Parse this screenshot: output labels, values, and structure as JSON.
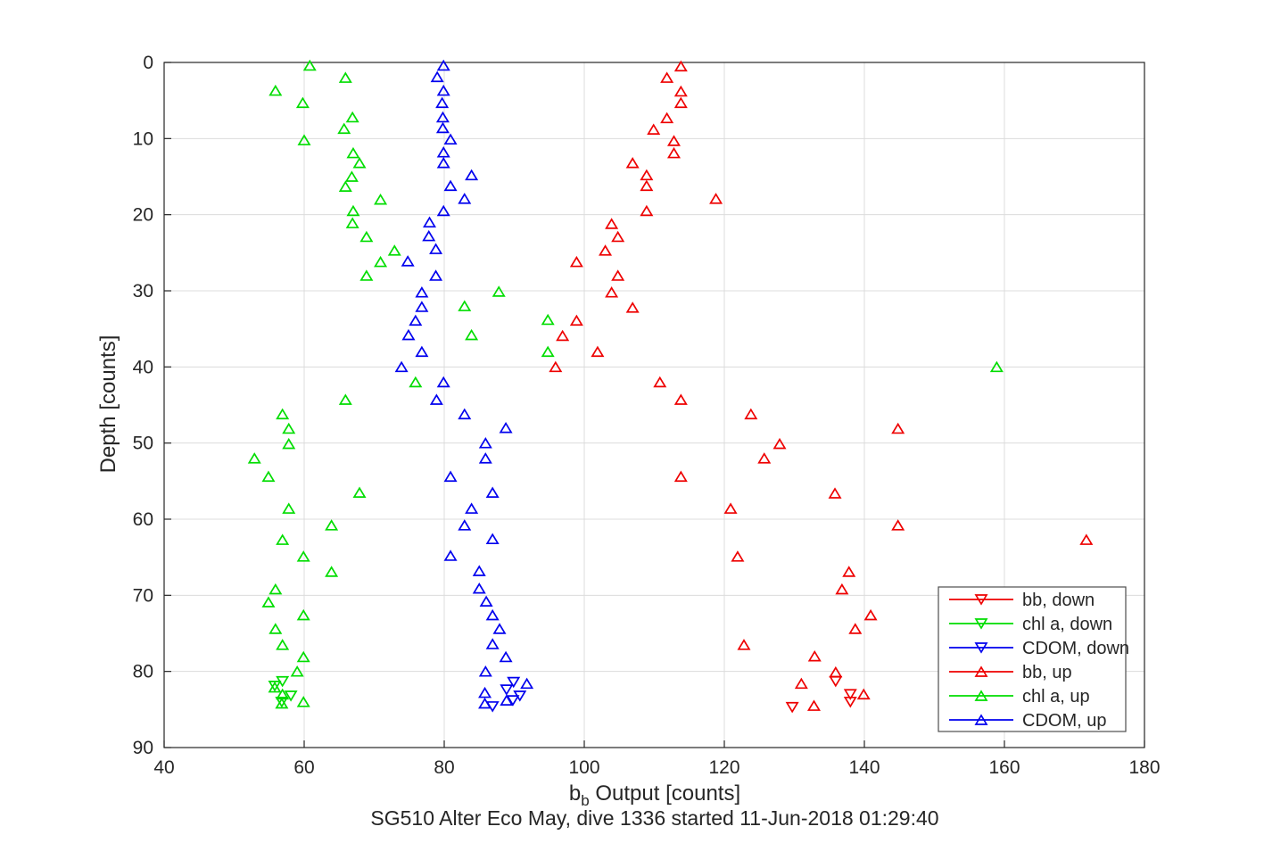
{
  "figure": {
    "title": "SG510 Alter Eco May, dive 1336 started 11-Jun-2018 01:29:40",
    "xlabel_main": "b",
    "xlabel_sub": "b",
    "xlabel_rest": " Output [counts]",
    "ylabel": "Depth [counts]"
  },
  "colors": {
    "axis": "#262626",
    "grid": "#dcdcdc",
    "legend_border": "#4d4d4d",
    "red": "#ee0000",
    "green": "#00dd00",
    "blue": "#0000ee"
  },
  "chart_data": {
    "type": "scatter",
    "title": "SG510 Alter Eco May, dive 1336 started 11-Jun-2018 01:29:40",
    "xlabel": "b_b Output [counts]",
    "ylabel": "Depth [counts]",
    "xlim": [
      40,
      180
    ],
    "ylim": [
      0,
      90
    ],
    "y_direction": "reverse",
    "xticks": [
      40,
      60,
      80,
      100,
      120,
      140,
      160,
      180
    ],
    "yticks": [
      0,
      10,
      20,
      30,
      40,
      50,
      60,
      70,
      80,
      90
    ],
    "grid": true,
    "legend_position": "lower right",
    "series": [
      {
        "name": "bb, down",
        "color": "#ee0000",
        "marker": "triangle-down",
        "points": [
          [
            135.9,
            81.3
          ],
          [
            138.0,
            83.0
          ],
          [
            138.0,
            84.0
          ],
          [
            129.7,
            84.7
          ]
        ]
      },
      {
        "name": "chl a, down",
        "color": "#00dd00",
        "marker": "triangle-down",
        "points": [
          [
            56.9,
            81.3
          ],
          [
            55.8,
            81.9
          ],
          [
            58.1,
            83.2
          ],
          [
            56.8,
            84.0
          ]
        ]
      },
      {
        "name": "CDOM, down",
        "color": "#0000ee",
        "marker": "triangle-down",
        "points": [
          [
            89.9,
            81.4
          ],
          [
            88.9,
            82.4
          ],
          [
            90.8,
            83.2
          ],
          [
            89.8,
            83.8
          ],
          [
            86.9,
            84.6
          ]
        ]
      },
      {
        "name": "bb, up",
        "color": "#ee0000",
        "marker": "triangle-up",
        "points": [
          [
            113.8,
            0.5
          ],
          [
            111.8,
            2.0
          ],
          [
            113.8,
            3.8
          ],
          [
            113.8,
            5.3
          ],
          [
            111.8,
            7.3
          ],
          [
            109.9,
            8.8
          ],
          [
            112.8,
            10.3
          ],
          [
            112.8,
            11.9
          ],
          [
            106.9,
            13.2
          ],
          [
            108.9,
            14.8
          ],
          [
            108.9,
            16.2
          ],
          [
            118.8,
            17.9
          ],
          [
            108.9,
            19.5
          ],
          [
            103.9,
            21.2
          ],
          [
            104.8,
            22.9
          ],
          [
            103.0,
            24.7
          ],
          [
            98.9,
            26.2
          ],
          [
            104.8,
            28.0
          ],
          [
            103.9,
            30.2
          ],
          [
            106.9,
            32.2
          ],
          [
            98.9,
            33.9
          ],
          [
            96.9,
            35.9
          ],
          [
            101.9,
            38.0
          ],
          [
            95.9,
            40.0
          ],
          [
            110.8,
            42.0
          ],
          [
            113.8,
            44.3
          ],
          [
            123.8,
            46.2
          ],
          [
            144.8,
            48.1
          ],
          [
            127.9,
            50.1
          ],
          [
            125.7,
            52.0
          ],
          [
            113.8,
            54.4
          ],
          [
            135.8,
            56.6
          ],
          [
            120.9,
            58.6
          ],
          [
            144.8,
            60.8
          ],
          [
            171.7,
            62.7
          ],
          [
            121.9,
            64.9
          ],
          [
            137.8,
            66.9
          ],
          [
            136.8,
            69.2
          ],
          [
            140.9,
            72.6
          ],
          [
            138.7,
            74.4
          ],
          [
            122.8,
            76.5
          ],
          [
            132.9,
            78.0
          ],
          [
            135.9,
            80.1
          ],
          [
            131.0,
            81.6
          ],
          [
            139.9,
            83.0
          ],
          [
            132.8,
            84.5
          ]
        ]
      },
      {
        "name": "chl a, up",
        "color": "#00dd00",
        "marker": "triangle-up",
        "points": [
          [
            60.8,
            0.4
          ],
          [
            65.9,
            2.0
          ],
          [
            55.9,
            3.7
          ],
          [
            59.8,
            5.3
          ],
          [
            66.9,
            7.2
          ],
          [
            65.7,
            8.7
          ],
          [
            60.0,
            10.2
          ],
          [
            67.0,
            11.9
          ],
          [
            67.9,
            13.2
          ],
          [
            66.8,
            15.0
          ],
          [
            65.9,
            16.3
          ],
          [
            70.9,
            18.0
          ],
          [
            67.0,
            19.5
          ],
          [
            66.9,
            21.1
          ],
          [
            68.9,
            22.9
          ],
          [
            72.9,
            24.7
          ],
          [
            70.9,
            26.2
          ],
          [
            68.9,
            28.0
          ],
          [
            87.8,
            30.1
          ],
          [
            82.9,
            32.0
          ],
          [
            94.8,
            33.8
          ],
          [
            83.9,
            35.8
          ],
          [
            94.8,
            38.0
          ],
          [
            158.9,
            40.0
          ],
          [
            75.9,
            42.0
          ],
          [
            65.9,
            44.3
          ],
          [
            56.9,
            46.2
          ],
          [
            57.8,
            48.1
          ],
          [
            57.8,
            50.1
          ],
          [
            52.9,
            52.0
          ],
          [
            54.9,
            54.4
          ],
          [
            67.9,
            56.5
          ],
          [
            57.8,
            58.6
          ],
          [
            63.9,
            60.8
          ],
          [
            56.9,
            62.7
          ],
          [
            59.9,
            64.9
          ],
          [
            63.9,
            66.9
          ],
          [
            55.9,
            69.2
          ],
          [
            54.9,
            70.9
          ],
          [
            59.9,
            72.6
          ],
          [
            55.9,
            74.4
          ],
          [
            56.9,
            76.5
          ],
          [
            59.9,
            78.1
          ],
          [
            59.0,
            80.0
          ],
          [
            55.8,
            82.1
          ],
          [
            56.9,
            83.0
          ],
          [
            56.8,
            84.2
          ],
          [
            59.9,
            84.0
          ]
        ]
      },
      {
        "name": "CDOM, up",
        "color": "#0000ee",
        "marker": "triangle-up",
        "points": [
          [
            79.9,
            0.4
          ],
          [
            79.0,
            1.9
          ],
          [
            79.9,
            3.7
          ],
          [
            79.7,
            5.3
          ],
          [
            79.8,
            7.2
          ],
          [
            79.8,
            8.6
          ],
          [
            80.9,
            10.1
          ],
          [
            79.9,
            11.8
          ],
          [
            79.9,
            13.2
          ],
          [
            83.9,
            14.8
          ],
          [
            80.9,
            16.2
          ],
          [
            82.9,
            17.9
          ],
          [
            79.9,
            19.5
          ],
          [
            77.9,
            21.0
          ],
          [
            77.8,
            22.8
          ],
          [
            78.8,
            24.5
          ],
          [
            74.8,
            26.1
          ],
          [
            78.8,
            28.0
          ],
          [
            76.8,
            30.2
          ],
          [
            76.8,
            32.1
          ],
          [
            75.9,
            33.9
          ],
          [
            74.9,
            35.8
          ],
          [
            76.8,
            38.0
          ],
          [
            73.9,
            40.0
          ],
          [
            79.9,
            42.0
          ],
          [
            78.9,
            44.3
          ],
          [
            82.9,
            46.2
          ],
          [
            88.8,
            48.0
          ],
          [
            85.9,
            50.0
          ],
          [
            85.9,
            52.0
          ],
          [
            80.9,
            54.4
          ],
          [
            86.9,
            56.5
          ],
          [
            83.9,
            58.6
          ],
          [
            82.9,
            60.8
          ],
          [
            86.9,
            62.6
          ],
          [
            80.9,
            64.8
          ],
          [
            85.0,
            66.8
          ],
          [
            85.0,
            69.1
          ],
          [
            86.0,
            70.8
          ],
          [
            86.9,
            72.6
          ],
          [
            87.9,
            74.4
          ],
          [
            86.9,
            76.4
          ],
          [
            88.8,
            78.1
          ],
          [
            85.9,
            80.0
          ],
          [
            91.8,
            81.6
          ],
          [
            85.8,
            82.8
          ],
          [
            88.9,
            83.8
          ],
          [
            85.8,
            84.2
          ]
        ]
      }
    ]
  }
}
